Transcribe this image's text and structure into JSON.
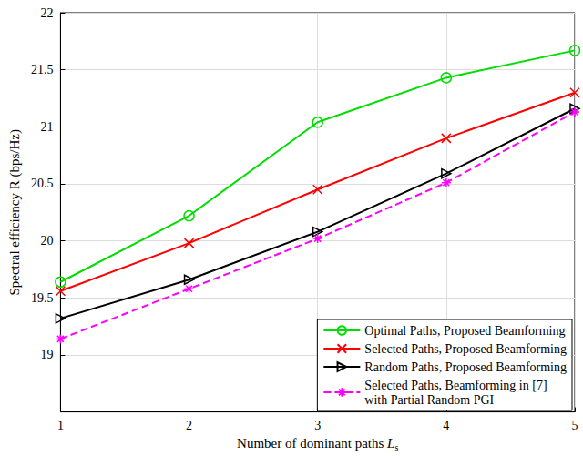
{
  "chart_data": {
    "type": "line",
    "x_label": "Number of dominant paths Ls",
    "y_label": "Spectral efficiency R (bps/Hz)",
    "x": [
      1,
      2,
      3,
      4,
      5
    ],
    "xlim": [
      1,
      5
    ],
    "xticks": [
      1,
      2,
      3,
      4,
      5
    ],
    "ylim": [
      18.5,
      22
    ],
    "yticks": [
      19,
      19.5,
      20,
      20.5,
      21,
      21.5,
      22
    ],
    "grid": true,
    "legend": "lower right",
    "series": [
      {
        "name": "Optimal Paths, Proposed Beamforming",
        "color": "#00dd00",
        "marker": "circle",
        "line_style": "solid",
        "values": [
          19.64,
          20.22,
          21.04,
          21.43,
          21.67
        ]
      },
      {
        "name": "Selected Paths, Proposed Beamforming",
        "color": "#ff0000",
        "marker": "x",
        "line_style": "solid",
        "values": [
          19.56,
          19.98,
          20.45,
          20.9,
          21.3
        ]
      },
      {
        "name": "Random Paths, Proposed Beamforming",
        "color": "#000000",
        "marker": "triangle-right",
        "line_style": "solid",
        "values": [
          19.32,
          19.66,
          20.08,
          20.59,
          21.16
        ]
      },
      {
        "name": "Selected Paths, Beamforming in [7]\nwith Partial Random PGI",
        "color": "#ff00ff",
        "marker": "asterisk",
        "line_style": "dashed",
        "values": [
          19.14,
          19.58,
          20.02,
          20.51,
          21.13
        ]
      }
    ]
  }
}
